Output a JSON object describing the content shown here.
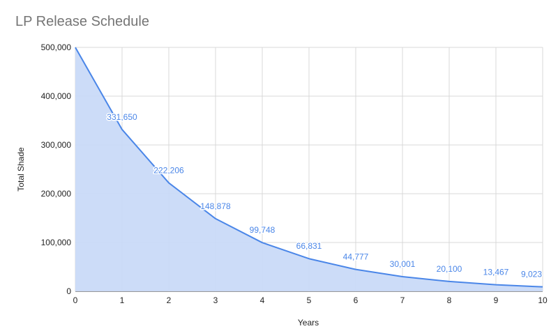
{
  "chart_data": {
    "type": "area",
    "title": "LP Release Schedule",
    "xlabel": "Years",
    "ylabel": "Total Shade",
    "x": [
      0,
      1,
      2,
      3,
      4,
      5,
      6,
      7,
      8,
      9,
      10
    ],
    "values": [
      500000,
      331650,
      222206,
      148878,
      99748,
      66831,
      44777,
      30001,
      20100,
      13467,
      9023
    ],
    "data_labels": [
      "",
      "331,650",
      "222,206",
      "148,878",
      "99,748",
      "66,831",
      "44,777",
      "30,001",
      "20,100",
      "13,467",
      "9,023"
    ],
    "y_ticks": [
      "0",
      "100,000",
      "200,000",
      "300,000",
      "400,000",
      "500,000"
    ],
    "x_ticks": [
      "0",
      "1",
      "2",
      "3",
      "4",
      "5",
      "6",
      "7",
      "8",
      "9",
      "10"
    ],
    "xlim": [
      0,
      10
    ],
    "ylim": [
      0,
      500000
    ],
    "grid": true,
    "legend": "none",
    "colors": {
      "line": "#4a86e8",
      "fill": "#c9daf8",
      "grid": "#d9d9d9",
      "title": "#757575",
      "data_label": "#4a86e8"
    }
  }
}
